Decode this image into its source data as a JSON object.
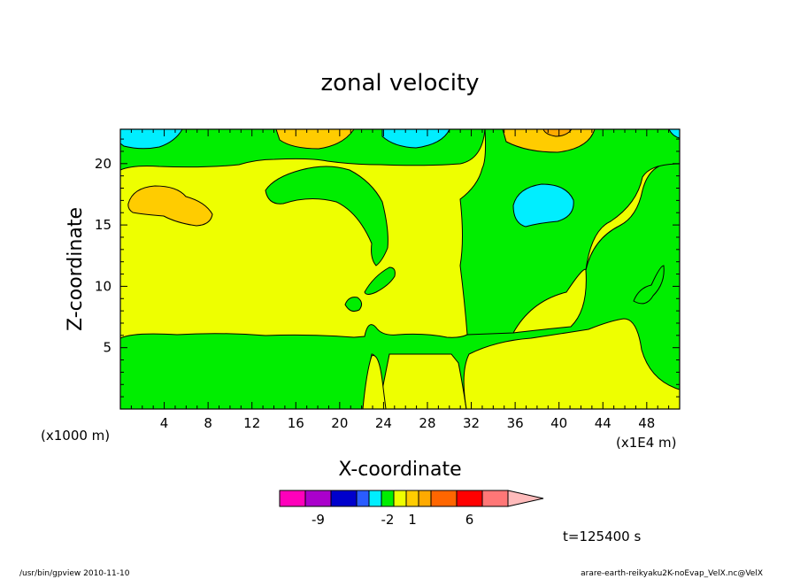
{
  "chart_data": {
    "type": "heatmap",
    "title": "zonal velocity",
    "xlabel": "X-coordinate",
    "ylabel": "Z-coordinate",
    "x_unit": "(x1E4 m)",
    "y_unit": "(x1000 m)",
    "x_ticks": [
      "4",
      "8",
      "12",
      "16",
      "20",
      "24",
      "28",
      "32",
      "36",
      "40",
      "44",
      "48"
    ],
    "x_tick_values": [
      4,
      8,
      12,
      16,
      20,
      24,
      28,
      32,
      36,
      40,
      44,
      48
    ],
    "y_ticks": [
      "5",
      "10",
      "15",
      "20"
    ],
    "y_tick_values": [
      5,
      10,
      15,
      20
    ],
    "xlim": [
      0,
      51
    ],
    "ylim": [
      0,
      22.8
    ],
    "colorbar": {
      "labels": [
        "-9",
        "-2",
        "1",
        "6"
      ],
      "label_positions": [
        1.5,
        5.5,
        7.5,
        10.5
      ],
      "colors": [
        "#ff00bb",
        "#aa00cc",
        "#0000cc",
        "#2a5cff",
        "#00eeff",
        "#00ee00",
        "#eeff00",
        "#ffcc00",
        "#ffaa00",
        "#ff6600",
        "#ff0000",
        "#ff7777"
      ],
      "extension_color": "#ffbbbb"
    },
    "filled_levels": {
      "background": "#eeff00",
      "negative_small": "#00ee00",
      "negative_medium": "#00eeff",
      "positive_small": "#ffcc00",
      "positive_medium": "#ffaa00"
    },
    "annotation": "t=125400 s"
  },
  "footer": {
    "left": "/usr/bin/gpview   2010-11-10",
    "right": "arare-earth-reikyaku2K-noEvap_VelX.nc@VelX"
  }
}
